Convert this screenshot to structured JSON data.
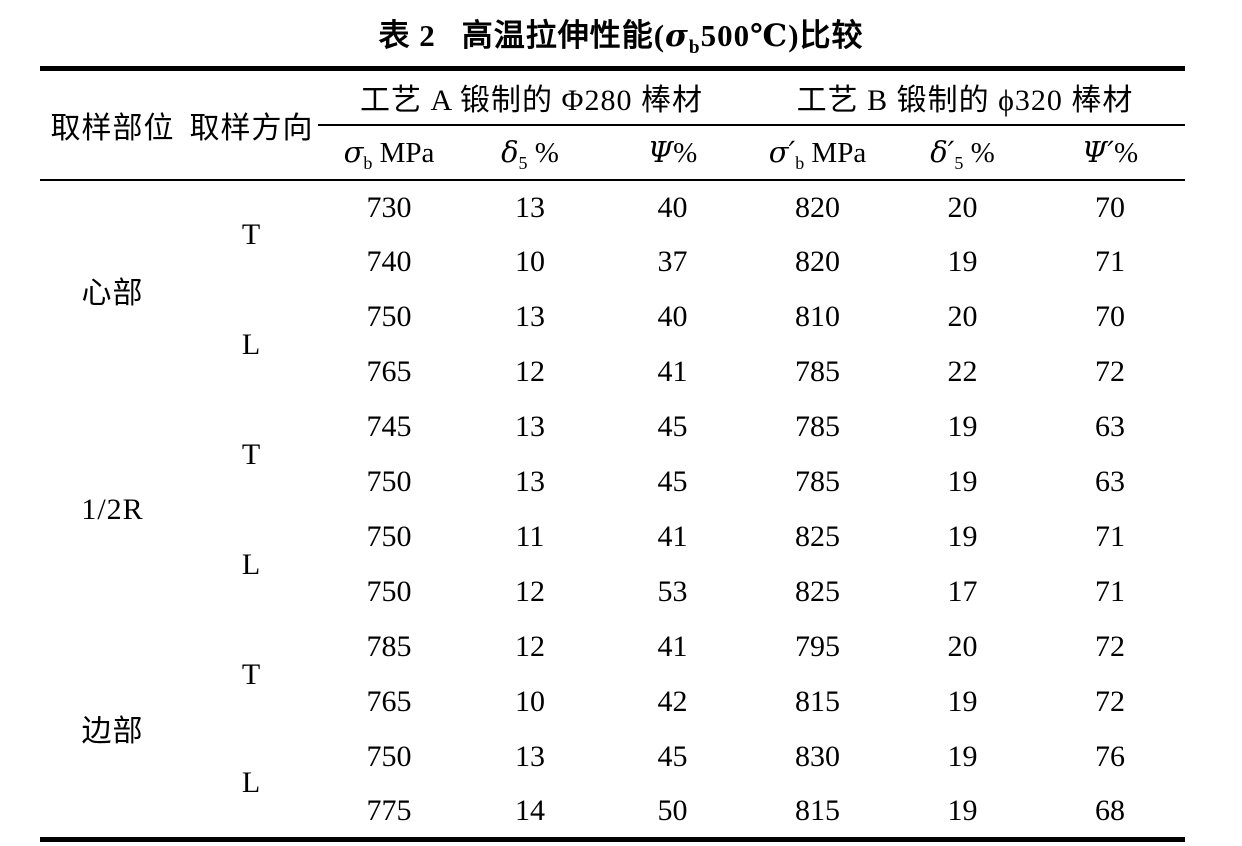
{
  "title": {
    "tag": "表 2",
    "pre": "高温拉伸性能(",
    "sigma": "σ",
    "sigma_sub": "b",
    "post": "500℃)比较"
  },
  "header": {
    "col_location": "取样部位",
    "col_direction": "取样方向",
    "group_a": "工艺 A 锻制的 Φ280 棒材",
    "group_b": "工艺 B 锻制的 ϕ320 棒材",
    "subcols": [
      {
        "sym": "σ",
        "sub": "b",
        "unit": " MPa"
      },
      {
        "sym": "δ",
        "sub": "5",
        "unit": " %"
      },
      {
        "sym": "Ψ",
        "sub": "",
        "unit": "%"
      },
      {
        "sym": "σ′",
        "sub": "b",
        "unit": " MPa"
      },
      {
        "sym": "δ′",
        "sub": "5",
        "unit": " %"
      },
      {
        "sym": "Ψ′",
        "sub": "",
        "unit": "%"
      }
    ]
  },
  "chart_data": {
    "type": "table",
    "title": "表2 高温拉伸性能(σb500℃)比较",
    "column_groups": [
      {
        "label": "工艺 A 锻制的 Φ280 棒材",
        "columns": [
          "σb MPa",
          "δ5 %",
          "Ψ%"
        ]
      },
      {
        "label": "工艺 B 锻制的 ϕ320 棒材",
        "columns": [
          "σ′b MPa",
          "δ′5 %",
          "Ψ′%"
        ]
      }
    ],
    "columns": [
      "取样部位",
      "取样方向",
      "σb MPa",
      "δ5 %",
      "Ψ%",
      "σ′b MPa",
      "δ′5 %",
      "Ψ′%"
    ],
    "sections": [
      {
        "location": "心部",
        "groups": [
          {
            "direction": "T",
            "rows": [
              [
                730,
                13,
                40,
                820,
                20,
                70
              ],
              [
                740,
                10,
                37,
                820,
                19,
                71
              ]
            ]
          },
          {
            "direction": "L",
            "rows": [
              [
                750,
                13,
                40,
                810,
                20,
                70
              ],
              [
                765,
                12,
                41,
                785,
                22,
                72
              ]
            ]
          }
        ]
      },
      {
        "location": "1/2R",
        "groups": [
          {
            "direction": "T",
            "rows": [
              [
                745,
                13,
                45,
                785,
                19,
                63
              ],
              [
                750,
                13,
                45,
                785,
                19,
                63
              ]
            ]
          },
          {
            "direction": "L",
            "rows": [
              [
                750,
                11,
                41,
                825,
                19,
                71
              ],
              [
                750,
                12,
                53,
                825,
                17,
                71
              ]
            ]
          }
        ]
      },
      {
        "location": "边部",
        "groups": [
          {
            "direction": "T",
            "rows": [
              [
                785,
                12,
                41,
                795,
                20,
                72
              ],
              [
                765,
                10,
                42,
                815,
                19,
                72
              ]
            ]
          },
          {
            "direction": "L",
            "rows": [
              [
                750,
                13,
                45,
                830,
                19,
                76
              ],
              [
                775,
                14,
                50,
                815,
                19,
                68
              ]
            ]
          }
        ]
      }
    ]
  },
  "colors": {
    "text": "#000000",
    "background": "#ffffff",
    "rule": "#000000"
  }
}
